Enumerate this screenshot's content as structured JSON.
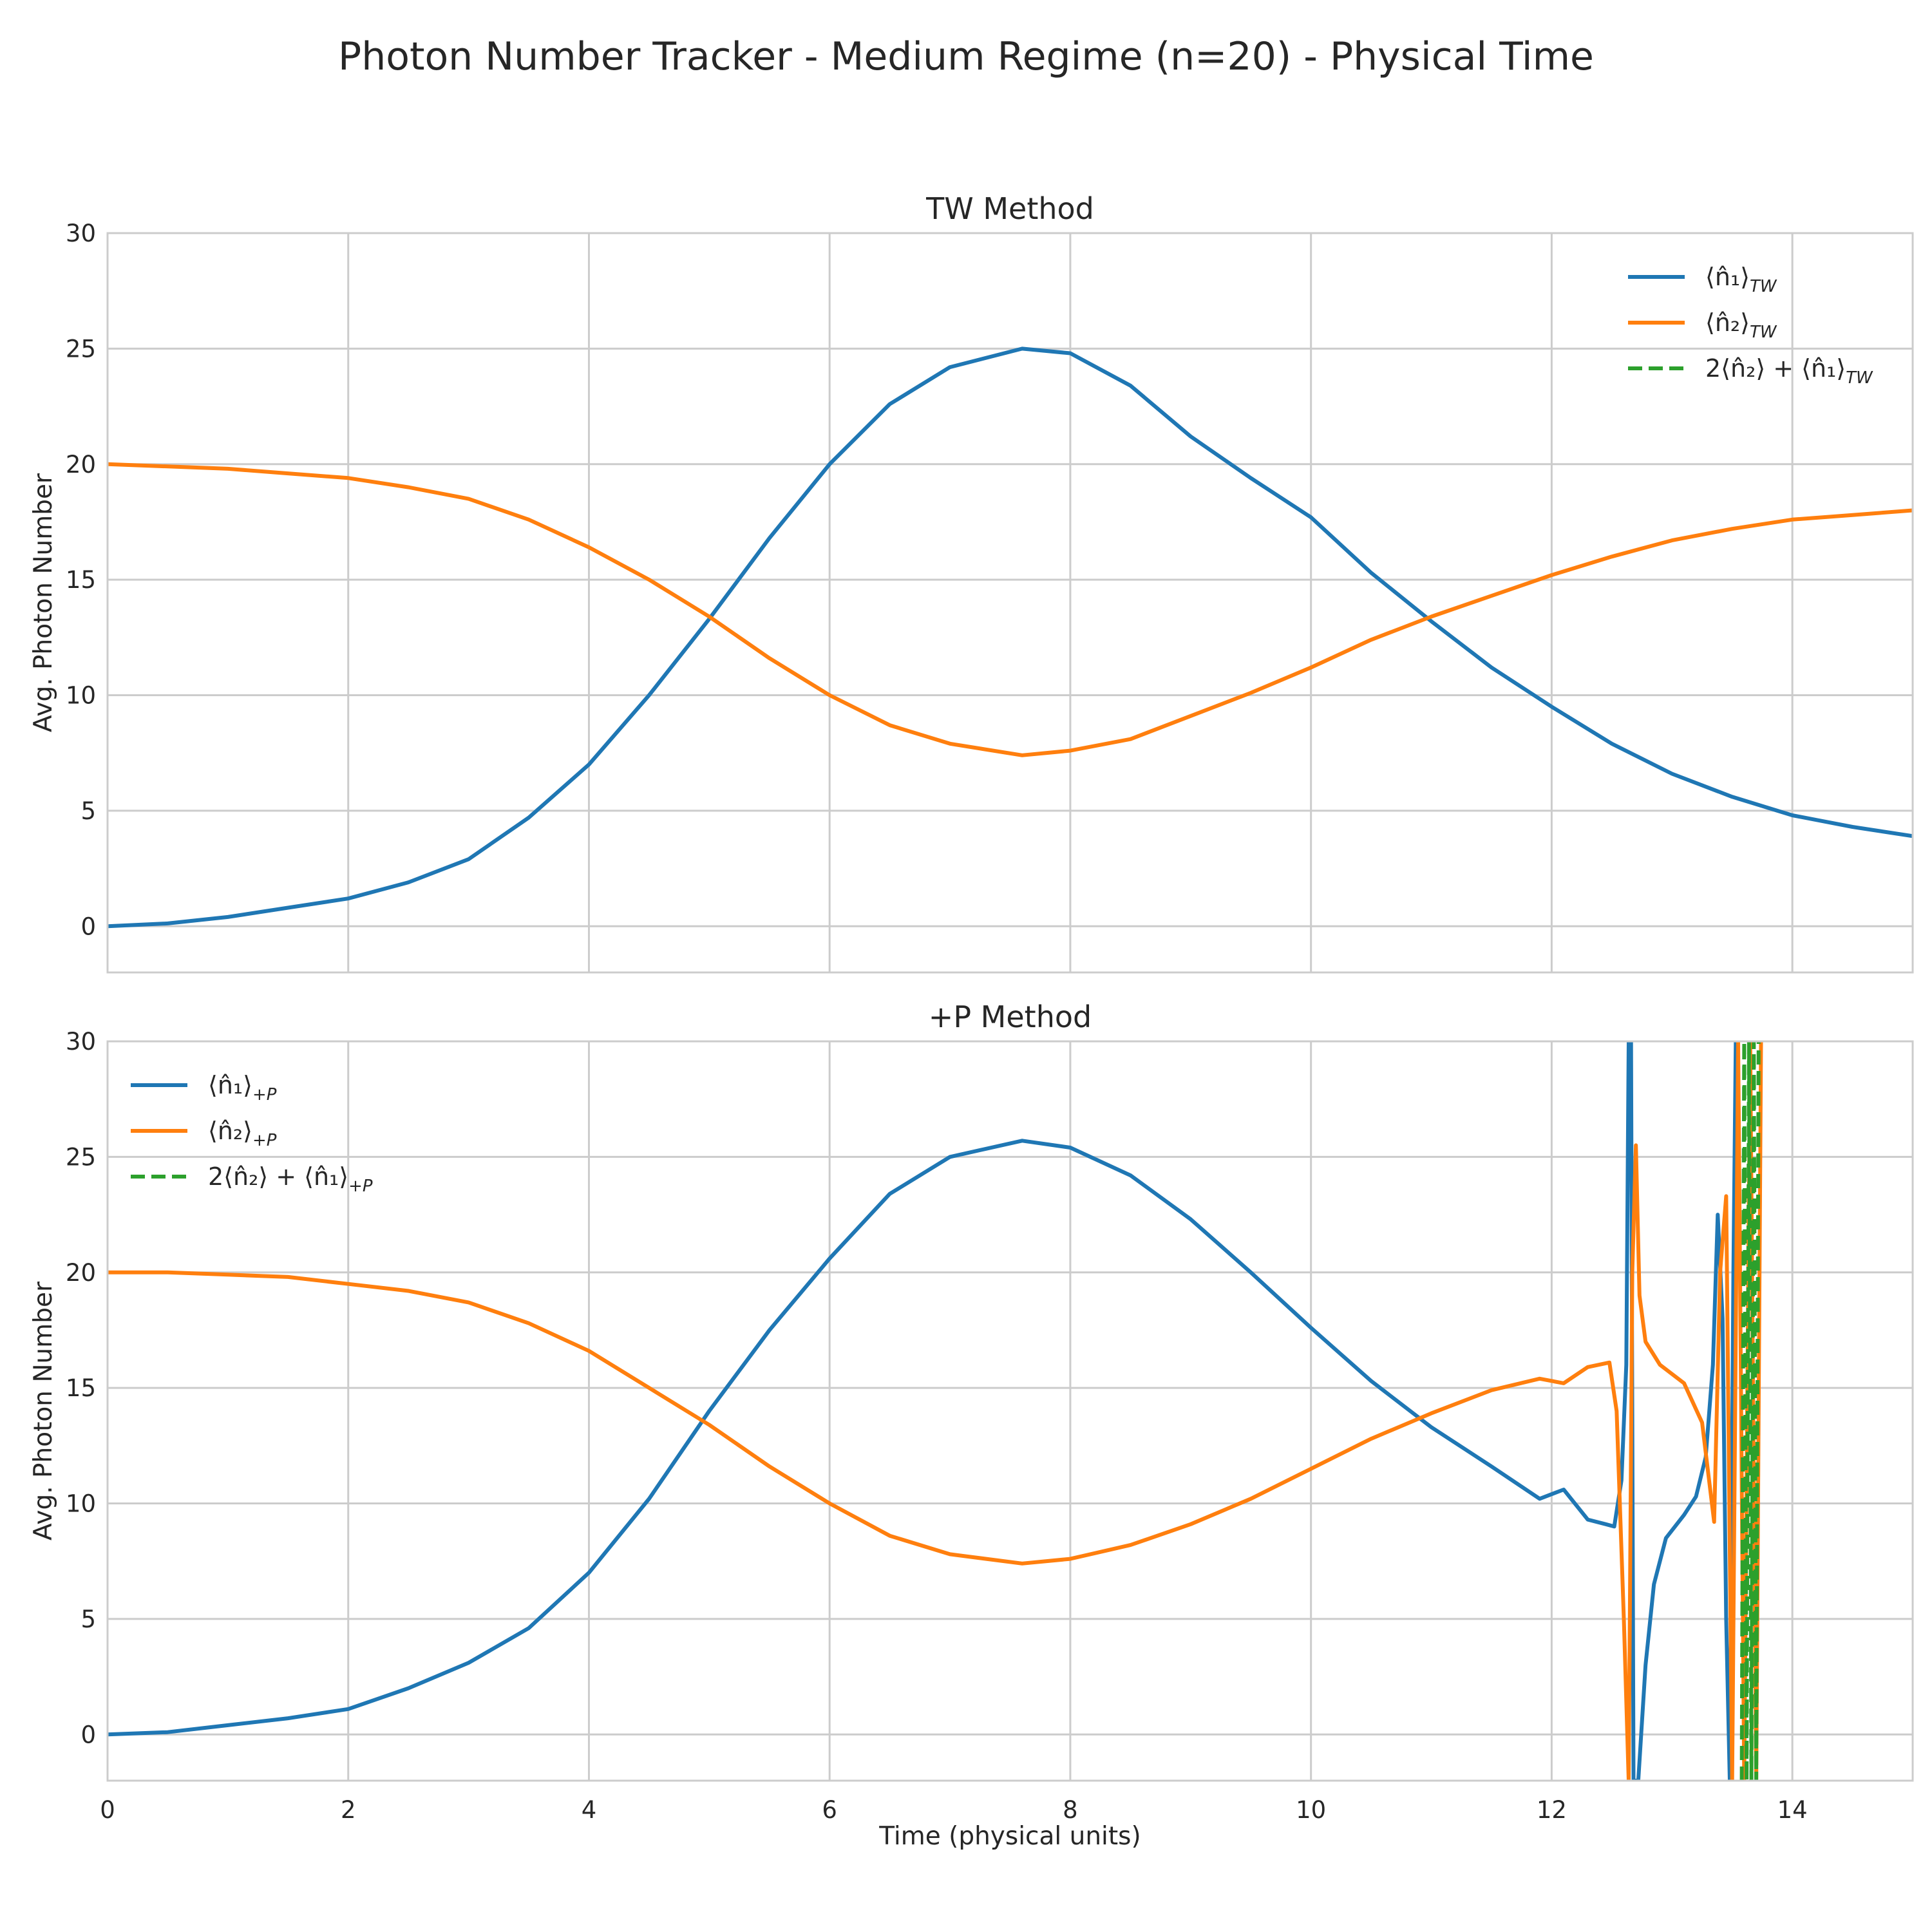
{
  "title": "Photon Number Tracker - Medium Regime (n=20) - Physical Time",
  "colors": {
    "n1": "#1f77b4",
    "n2": "#ff7f0e",
    "total": "#2ca02c",
    "grid": "#cccccc",
    "spine": "#cccccc"
  },
  "chart_data": [
    {
      "type": "line",
      "title": "TW Method",
      "xlabel": "",
      "ylabel": "Avg. Photon Number",
      "xlim": [
        0,
        15
      ],
      "ylim": [
        -2,
        30
      ],
      "xticks": [
        0,
        2,
        4,
        6,
        8,
        10,
        12,
        14
      ],
      "yticks": [
        0,
        5,
        10,
        15,
        20,
        25,
        30
      ],
      "grid": true,
      "legend_position": "top-right",
      "series": [
        {
          "key": "n1",
          "label": {
            "main": "⟨n̂₁⟩",
            "sub": "TW",
            "prefix": ""
          },
          "style": "solid",
          "x": [
            0,
            0.5,
            1,
            1.5,
            2,
            2.5,
            3,
            3.5,
            4,
            4.5,
            5,
            5.5,
            6,
            6.5,
            7,
            7.6,
            8,
            8.5,
            9,
            9.5,
            10,
            10.5,
            11,
            11.5,
            12,
            12.5,
            13,
            13.5,
            14,
            14.5,
            15
          ],
          "y": [
            0,
            0.12,
            0.4,
            0.8,
            1.2,
            1.9,
            2.9,
            4.7,
            7.0,
            10.0,
            13.3,
            16.8,
            20.0,
            22.6,
            24.2,
            25.0,
            24.8,
            23.4,
            21.2,
            19.4,
            17.7,
            15.3,
            13.2,
            11.2,
            9.5,
            7.9,
            6.6,
            5.6,
            4.8,
            4.3,
            3.9
          ]
        },
        {
          "key": "n2",
          "label": {
            "main": "⟨n̂₂⟩",
            "sub": "TW",
            "prefix": ""
          },
          "style": "solid",
          "x": [
            0,
            0.5,
            1,
            1.5,
            2,
            2.5,
            3,
            3.5,
            4,
            4.5,
            5,
            5.5,
            6,
            6.5,
            7,
            7.6,
            8,
            8.5,
            9,
            9.5,
            10,
            10.5,
            11,
            11.5,
            12,
            12.5,
            13,
            13.5,
            14,
            14.5,
            15
          ],
          "y": [
            20.0,
            19.9,
            19.8,
            19.6,
            19.4,
            19.0,
            18.5,
            17.6,
            16.4,
            15.0,
            13.4,
            11.6,
            10.0,
            8.7,
            7.9,
            7.4,
            7.6,
            8.1,
            9.1,
            10.1,
            11.2,
            12.4,
            13.4,
            14.3,
            15.2,
            16.0,
            16.7,
            17.2,
            17.6,
            17.8,
            18.0
          ]
        },
        {
          "key": "total",
          "label": {
            "main": "2⟨n̂₂⟩ + ⟨n̂₁⟩",
            "sub": "TW",
            "prefix": ""
          },
          "style": "dashed",
          "x": [],
          "y": []
        }
      ]
    },
    {
      "type": "line",
      "title": "+P Method",
      "xlabel": "Time (physical units)",
      "ylabel": "Avg. Photon Number",
      "xlim": [
        0,
        15
      ],
      "ylim": [
        -2,
        30
      ],
      "xticks": [
        0,
        2,
        4,
        6,
        8,
        10,
        12,
        14
      ],
      "yticks": [
        0,
        5,
        10,
        15,
        20,
        25,
        30
      ],
      "grid": true,
      "legend_position": "top-left",
      "series": [
        {
          "key": "n1",
          "label": {
            "main": "⟨n̂₁⟩",
            "sub": "+P"
          },
          "style": "solid",
          "x": [
            0,
            0.5,
            1,
            1.5,
            2,
            2.5,
            3,
            3.5,
            4,
            4.5,
            5,
            5.5,
            6,
            6.5,
            7,
            7.6,
            8,
            8.5,
            9,
            9.5,
            10,
            10.5,
            11,
            11.5,
            11.9,
            12.1,
            12.3,
            12.45,
            12.52,
            12.58,
            12.62,
            12.64,
            12.66,
            12.68,
            12.72,
            12.78,
            12.85,
            12.95,
            13.1,
            13.2,
            13.28,
            13.34,
            13.38,
            13.42,
            13.45,
            13.48,
            13.51,
            13.53
          ],
          "y": [
            0,
            0.1,
            0.4,
            0.7,
            1.1,
            2.0,
            3.1,
            4.6,
            7.0,
            10.2,
            14.0,
            17.5,
            20.6,
            23.4,
            25.0,
            25.7,
            25.4,
            24.2,
            22.3,
            20.0,
            17.6,
            15.3,
            13.3,
            11.6,
            10.2,
            10.6,
            9.3,
            9.1,
            9.0,
            11.0,
            16.0,
            30.0,
            30.0,
            -2.0,
            -2.0,
            3.0,
            6.5,
            8.5,
            9.5,
            10.3,
            12.0,
            16.0,
            22.5,
            18.0,
            5.0,
            -2.0,
            20.0,
            30.0
          ]
        },
        {
          "key": "n2",
          "label": {
            "main": "⟨n̂₂⟩",
            "sub": "+P"
          },
          "style": "solid",
          "x": [
            0,
            0.5,
            1,
            1.5,
            2,
            2.5,
            3,
            3.5,
            4,
            4.5,
            5,
            5.5,
            6,
            6.5,
            7,
            7.6,
            8,
            8.5,
            9,
            9.5,
            10,
            10.5,
            11,
            11.5,
            11.9,
            12.1,
            12.3,
            12.48,
            12.54,
            12.6,
            12.64,
            12.67,
            12.7,
            12.73,
            12.78,
            12.9,
            13.1,
            13.25,
            13.35,
            13.4,
            13.45,
            13.5,
            13.55,
            13.6,
            13.65,
            13.7,
            13.74
          ],
          "y": [
            20.0,
            20.0,
            19.9,
            19.8,
            19.5,
            19.2,
            18.7,
            17.8,
            16.6,
            15.0,
            13.4,
            11.6,
            10.0,
            8.6,
            7.8,
            7.4,
            7.6,
            8.2,
            9.1,
            10.2,
            11.5,
            12.8,
            13.9,
            14.9,
            15.4,
            15.2,
            15.9,
            16.1,
            14.0,
            5.0,
            -2.0,
            20.0,
            25.5,
            19.0,
            17.0,
            16.0,
            15.2,
            13.5,
            9.2,
            20.0,
            23.3,
            -2.0,
            30.0,
            -2.0,
            30.0,
            -2.0,
            30.0
          ]
        },
        {
          "key": "total",
          "label": {
            "main": "2⟨n̂₂⟩ + ⟨n̂₁⟩",
            "sub": "+P"
          },
          "style": "dashed",
          "x": [
            13.58,
            13.6,
            13.62,
            13.64,
            13.66,
            13.68,
            13.7,
            13.72
          ],
          "y": [
            -2.0,
            30.0,
            -2.0,
            30.0,
            -2.0,
            30.0,
            -2.0,
            30.0
          ]
        }
      ]
    }
  ]
}
